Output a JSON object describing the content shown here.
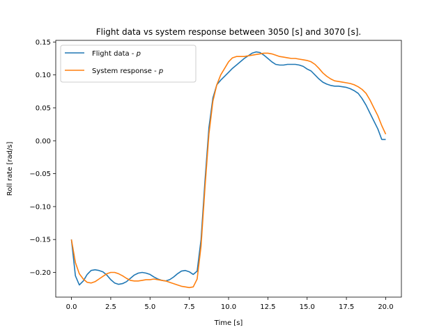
{
  "chart_data": {
    "type": "line",
    "title": "Flight data vs system response between 3050 [s] and 3070 [s].",
    "xlabel": "Time [s]",
    "ylabel": "Roll rate [rad/s]",
    "xlim": [
      -1.0,
      21.0
    ],
    "ylim": [
      -0.2375,
      0.1525
    ],
    "xticks": [
      0.0,
      2.5,
      5.0,
      7.5,
      10.0,
      12.5,
      15.0,
      17.5,
      20.0
    ],
    "xtick_labels": [
      "0.0",
      "2.5",
      "5.0",
      "7.5",
      "10.0",
      "12.5",
      "15.0",
      "17.5",
      "20.0"
    ],
    "yticks": [
      -0.2,
      -0.15,
      -0.1,
      -0.05,
      0.0,
      0.05,
      0.1,
      0.15
    ],
    "ytick_labels": [
      "−0.20",
      "−0.15",
      "−0.10",
      "−0.05",
      "0.00",
      "0.05",
      "0.10",
      "0.15"
    ],
    "grid": false,
    "legend_position": "upper-left",
    "series": [
      {
        "name": "Flight data - p",
        "name_base": "Flight data - ",
        "name_var": "p",
        "color": "#1f77b4",
        "x": [
          0.0,
          0.25,
          0.5,
          0.75,
          1.0,
          1.25,
          1.5,
          1.75,
          2.0,
          2.25,
          2.5,
          2.75,
          3.0,
          3.25,
          3.5,
          3.75,
          4.0,
          4.25,
          4.5,
          4.75,
          5.0,
          5.25,
          5.5,
          5.75,
          6.0,
          6.25,
          6.5,
          6.75,
          7.0,
          7.25,
          7.5,
          7.75,
          8.0,
          8.25,
          8.5,
          8.75,
          9.0,
          9.25,
          9.5,
          9.75,
          10.0,
          10.25,
          10.5,
          10.75,
          11.0,
          11.25,
          11.5,
          11.75,
          12.0,
          12.25,
          12.5,
          12.75,
          13.0,
          13.25,
          13.5,
          13.75,
          14.0,
          14.25,
          14.5,
          14.75,
          15.0,
          15.25,
          15.5,
          15.75,
          16.0,
          16.25,
          16.5,
          16.75,
          17.0,
          17.25,
          17.5,
          17.75,
          18.0,
          18.25,
          18.5,
          18.75,
          19.0,
          19.25,
          19.5,
          19.75,
          20.0
        ],
        "y": [
          -0.15,
          -0.205,
          -0.219,
          -0.213,
          -0.203,
          -0.197,
          -0.196,
          -0.197,
          -0.199,
          -0.204,
          -0.211,
          -0.216,
          -0.218,
          -0.217,
          -0.214,
          -0.209,
          -0.204,
          -0.201,
          -0.2,
          -0.201,
          -0.203,
          -0.207,
          -0.21,
          -0.212,
          -0.213,
          -0.211,
          -0.207,
          -0.202,
          -0.198,
          -0.197,
          -0.199,
          -0.203,
          -0.198,
          -0.15,
          -0.06,
          0.02,
          0.065,
          0.085,
          0.092,
          0.098,
          0.104,
          0.11,
          0.115,
          0.12,
          0.125,
          0.129,
          0.133,
          0.135,
          0.134,
          0.13,
          0.125,
          0.12,
          0.116,
          0.115,
          0.115,
          0.116,
          0.116,
          0.116,
          0.115,
          0.113,
          0.109,
          0.106,
          0.1,
          0.094,
          0.089,
          0.086,
          0.084,
          0.083,
          0.083,
          0.082,
          0.081,
          0.079,
          0.076,
          0.072,
          0.064,
          0.054,
          0.042,
          0.03,
          0.018,
          0.002,
          0.002
        ]
      },
      {
        "name": "System response - p",
        "name_base": "System response - ",
        "name_var": "p",
        "color": "#ff7f0e",
        "x": [
          0.0,
          0.25,
          0.5,
          0.75,
          1.0,
          1.25,
          1.5,
          1.75,
          2.0,
          2.25,
          2.5,
          2.75,
          3.0,
          3.25,
          3.5,
          3.75,
          4.0,
          4.25,
          4.5,
          4.75,
          5.0,
          5.25,
          5.5,
          5.75,
          6.0,
          6.25,
          6.5,
          6.75,
          7.0,
          7.25,
          7.5,
          7.75,
          8.0,
          8.25,
          8.5,
          8.75,
          9.0,
          9.25,
          9.5,
          9.75,
          10.0,
          10.25,
          10.5,
          10.75,
          11.0,
          11.25,
          11.5,
          11.75,
          12.0,
          12.25,
          12.5,
          12.75,
          13.0,
          13.25,
          13.5,
          13.75,
          14.0,
          14.25,
          14.5,
          14.75,
          15.0,
          15.25,
          15.5,
          15.75,
          16.0,
          16.25,
          16.5,
          16.75,
          17.0,
          17.25,
          17.5,
          17.75,
          18.0,
          18.25,
          18.5,
          18.75,
          19.0,
          19.25,
          19.5,
          19.75,
          20.0
        ],
        "y": [
          -0.15,
          -0.185,
          -0.202,
          -0.21,
          -0.215,
          -0.216,
          -0.214,
          -0.21,
          -0.206,
          -0.202,
          -0.2,
          -0.2,
          -0.202,
          -0.205,
          -0.209,
          -0.212,
          -0.213,
          -0.213,
          -0.212,
          -0.211,
          -0.211,
          -0.21,
          -0.211,
          -0.212,
          -0.213,
          -0.215,
          -0.217,
          -0.219,
          -0.221,
          -0.222,
          -0.223,
          -0.222,
          -0.21,
          -0.16,
          -0.07,
          0.01,
          0.06,
          0.085,
          0.1,
          0.11,
          0.12,
          0.126,
          0.128,
          0.128,
          0.128,
          0.129,
          0.13,
          0.131,
          0.132,
          0.133,
          0.133,
          0.132,
          0.13,
          0.128,
          0.127,
          0.126,
          0.125,
          0.125,
          0.124,
          0.123,
          0.122,
          0.12,
          0.116,
          0.11,
          0.103,
          0.098,
          0.094,
          0.091,
          0.09,
          0.089,
          0.088,
          0.087,
          0.085,
          0.082,
          0.078,
          0.072,
          0.062,
          0.05,
          0.038,
          0.023,
          0.01
        ]
      }
    ]
  }
}
